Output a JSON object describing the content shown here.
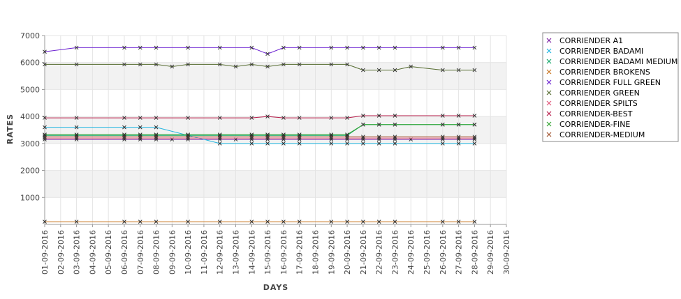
{
  "chart_data": {
    "type": "line",
    "xlabel": "DAYS",
    "ylabel": "RATES",
    "ylim": [
      0,
      7000
    ],
    "y_ticks": [
      1000,
      2000,
      3000,
      4000,
      5000,
      6000,
      7000
    ],
    "grid": true,
    "legend_position": "right",
    "categories": [
      "01-09-2016",
      "02-09-2016",
      "03-09-2016",
      "04-09-2016",
      "05-09-2016",
      "06-09-2016",
      "07-09-2016",
      "08-09-2016",
      "09-09-2016",
      "10-09-2016",
      "11-09-2016",
      "12-09-2016",
      "13-09-2016",
      "14-09-2016",
      "15-09-2016",
      "16-09-2016",
      "17-09-2016",
      "18-09-2016",
      "19-09-2016",
      "20-09-2016",
      "21-09-2016",
      "22-09-2016",
      "23-09-2016",
      "24-09-2016",
      "25-09-2016",
      "26-09-2016",
      "27-09-2016",
      "28-09-2016",
      "29-09-2016",
      "30-09-2016"
    ],
    "series": [
      {
        "name": "CORRIENDER A1",
        "color": "#7b1fa2",
        "points": [
          [
            "01-09-2016",
            3150
          ],
          [
            "03-09-2016",
            3150
          ],
          [
            "06-09-2016",
            3150
          ],
          [
            "07-09-2016",
            3150
          ],
          [
            "08-09-2016",
            3150
          ],
          [
            "09-09-2016",
            3150
          ],
          [
            "10-09-2016",
            3150
          ],
          [
            "12-09-2016",
            3150
          ],
          [
            "13-09-2016",
            3150
          ],
          [
            "14-09-2016",
            3150
          ],
          [
            "15-09-2016",
            3150
          ],
          [
            "16-09-2016",
            3150
          ],
          [
            "17-09-2016",
            3150
          ],
          [
            "19-09-2016",
            3150
          ],
          [
            "20-09-2016",
            3150
          ],
          [
            "21-09-2016",
            3150
          ],
          [
            "22-09-2016",
            3150
          ],
          [
            "23-09-2016",
            3150
          ],
          [
            "24-09-2016",
            3150
          ],
          [
            "26-09-2016",
            3150
          ],
          [
            "27-09-2016",
            3150
          ],
          [
            "28-09-2016",
            3150
          ]
        ]
      },
      {
        "name": "CORRIENDER BADAMI",
        "color": "#1fb4e0",
        "points": [
          [
            "01-09-2016",
            3600
          ],
          [
            "03-09-2016",
            3600
          ],
          [
            "06-09-2016",
            3600
          ],
          [
            "07-09-2016",
            3600
          ],
          [
            "08-09-2016",
            3600
          ],
          [
            "10-09-2016",
            3300
          ],
          [
            "12-09-2016",
            3000
          ],
          [
            "14-09-2016",
            3000
          ],
          [
            "15-09-2016",
            3000
          ],
          [
            "16-09-2016",
            3000
          ],
          [
            "17-09-2016",
            3000
          ],
          [
            "19-09-2016",
            3000
          ],
          [
            "20-09-2016",
            3000
          ],
          [
            "21-09-2016",
            3000
          ],
          [
            "22-09-2016",
            3000
          ],
          [
            "23-09-2016",
            3000
          ],
          [
            "26-09-2016",
            3000
          ],
          [
            "27-09-2016",
            3000
          ],
          [
            "28-09-2016",
            3000
          ]
        ]
      },
      {
        "name": "CORRIENDER BADAMI MEDIUM",
        "color": "#13a86a",
        "points": [
          [
            "01-09-2016",
            3300
          ],
          [
            "03-09-2016",
            3300
          ],
          [
            "06-09-2016",
            3300
          ],
          [
            "07-09-2016",
            3300
          ],
          [
            "08-09-2016",
            3300
          ],
          [
            "10-09-2016",
            3300
          ],
          [
            "12-09-2016",
            3300
          ],
          [
            "14-09-2016",
            3300
          ],
          [
            "15-09-2016",
            3300
          ],
          [
            "16-09-2016",
            3300
          ],
          [
            "17-09-2016",
            3300
          ],
          [
            "19-09-2016",
            3300
          ],
          [
            "20-09-2016",
            3300
          ],
          [
            "21-09-2016",
            3700
          ],
          [
            "22-09-2016",
            3700
          ],
          [
            "23-09-2016",
            3700
          ],
          [
            "26-09-2016",
            3700
          ],
          [
            "27-09-2016",
            3700
          ],
          [
            "28-09-2016",
            3700
          ]
        ]
      },
      {
        "name": "CORRIENDER BROKENS",
        "color": "#c8741e",
        "points": [
          [
            "01-09-2016",
            100
          ],
          [
            "03-09-2016",
            100
          ],
          [
            "06-09-2016",
            100
          ],
          [
            "07-09-2016",
            100
          ],
          [
            "08-09-2016",
            100
          ],
          [
            "10-09-2016",
            100
          ],
          [
            "12-09-2016",
            100
          ],
          [
            "14-09-2016",
            100
          ],
          [
            "15-09-2016",
            100
          ],
          [
            "16-09-2016",
            100
          ],
          [
            "17-09-2016",
            100
          ],
          [
            "19-09-2016",
            100
          ],
          [
            "20-09-2016",
            100
          ],
          [
            "21-09-2016",
            100
          ],
          [
            "22-09-2016",
            100
          ],
          [
            "23-09-2016",
            100
          ],
          [
            "26-09-2016",
            100
          ],
          [
            "27-09-2016",
            100
          ],
          [
            "28-09-2016",
            100
          ]
        ]
      },
      {
        "name": "CORRIENDER FULL GREEN",
        "color": "#6a1fd0",
        "points": [
          [
            "01-09-2016",
            6400
          ],
          [
            "03-09-2016",
            6550
          ],
          [
            "06-09-2016",
            6550
          ],
          [
            "07-09-2016",
            6550
          ],
          [
            "08-09-2016",
            6550
          ],
          [
            "10-09-2016",
            6550
          ],
          [
            "12-09-2016",
            6550
          ],
          [
            "14-09-2016",
            6550
          ],
          [
            "15-09-2016",
            6320
          ],
          [
            "16-09-2016",
            6550
          ],
          [
            "17-09-2016",
            6550
          ],
          [
            "19-09-2016",
            6550
          ],
          [
            "20-09-2016",
            6550
          ],
          [
            "21-09-2016",
            6550
          ],
          [
            "22-09-2016",
            6550
          ],
          [
            "23-09-2016",
            6550
          ],
          [
            "26-09-2016",
            6550
          ],
          [
            "27-09-2016",
            6550
          ],
          [
            "28-09-2016",
            6550
          ]
        ]
      },
      {
        "name": "CORRIENDER GREEN",
        "color": "#556b2f",
        "points": [
          [
            "01-09-2016",
            5930
          ],
          [
            "03-09-2016",
            5930
          ],
          [
            "06-09-2016",
            5930
          ],
          [
            "07-09-2016",
            5930
          ],
          [
            "08-09-2016",
            5930
          ],
          [
            "09-09-2016",
            5850
          ],
          [
            "10-09-2016",
            5930
          ],
          [
            "12-09-2016",
            5930
          ],
          [
            "13-09-2016",
            5850
          ],
          [
            "14-09-2016",
            5930
          ],
          [
            "15-09-2016",
            5850
          ],
          [
            "16-09-2016",
            5930
          ],
          [
            "17-09-2016",
            5930
          ],
          [
            "19-09-2016",
            5930
          ],
          [
            "20-09-2016",
            5930
          ],
          [
            "21-09-2016",
            5720
          ],
          [
            "22-09-2016",
            5720
          ],
          [
            "23-09-2016",
            5720
          ],
          [
            "24-09-2016",
            5850
          ],
          [
            "26-09-2016",
            5720
          ],
          [
            "27-09-2016",
            5720
          ],
          [
            "28-09-2016",
            5720
          ]
        ]
      },
      {
        "name": "CORRIENDER SPILTS",
        "color": "#e0567a",
        "points": [
          [
            "01-09-2016",
            3200
          ],
          [
            "03-09-2016",
            3200
          ],
          [
            "06-09-2016",
            3200
          ],
          [
            "07-09-2016",
            3200
          ],
          [
            "08-09-2016",
            3200
          ],
          [
            "10-09-2016",
            3200
          ],
          [
            "12-09-2016",
            3200
          ],
          [
            "14-09-2016",
            3200
          ],
          [
            "15-09-2016",
            3200
          ],
          [
            "16-09-2016",
            3200
          ],
          [
            "17-09-2016",
            3200
          ],
          [
            "19-09-2016",
            3200
          ],
          [
            "20-09-2016",
            3200
          ],
          [
            "21-09-2016",
            3200
          ],
          [
            "22-09-2016",
            3200
          ],
          [
            "23-09-2016",
            3200
          ],
          [
            "26-09-2016",
            3200
          ],
          [
            "27-09-2016",
            3200
          ],
          [
            "28-09-2016",
            3200
          ]
        ]
      },
      {
        "name": "CORRIENDER-BEST",
        "color": "#b71c4a",
        "points": [
          [
            "01-09-2016",
            3950
          ],
          [
            "03-09-2016",
            3950
          ],
          [
            "06-09-2016",
            3950
          ],
          [
            "07-09-2016",
            3950
          ],
          [
            "08-09-2016",
            3950
          ],
          [
            "10-09-2016",
            3950
          ],
          [
            "12-09-2016",
            3950
          ],
          [
            "14-09-2016",
            3950
          ],
          [
            "15-09-2016",
            4000
          ],
          [
            "16-09-2016",
            3950
          ],
          [
            "17-09-2016",
            3950
          ],
          [
            "19-09-2016",
            3950
          ],
          [
            "20-09-2016",
            3950
          ],
          [
            "21-09-2016",
            4030
          ],
          [
            "22-09-2016",
            4030
          ],
          [
            "23-09-2016",
            4030
          ],
          [
            "26-09-2016",
            4030
          ],
          [
            "27-09-2016",
            4030
          ],
          [
            "28-09-2016",
            4030
          ]
        ]
      },
      {
        "name": "CORRIENDER-FINE",
        "color": "#33a532",
        "points": [
          [
            "01-09-2016",
            3330
          ],
          [
            "03-09-2016",
            3330
          ],
          [
            "06-09-2016",
            3330
          ],
          [
            "07-09-2016",
            3330
          ],
          [
            "08-09-2016",
            3330
          ],
          [
            "10-09-2016",
            3330
          ],
          [
            "12-09-2016",
            3330
          ],
          [
            "14-09-2016",
            3330
          ],
          [
            "15-09-2016",
            3330
          ],
          [
            "16-09-2016",
            3330
          ],
          [
            "17-09-2016",
            3330
          ],
          [
            "19-09-2016",
            3330
          ],
          [
            "20-09-2016",
            3330
          ],
          [
            "21-09-2016",
            3700
          ],
          [
            "22-09-2016",
            3700
          ],
          [
            "23-09-2016",
            3700
          ],
          [
            "26-09-2016",
            3700
          ],
          [
            "27-09-2016",
            3700
          ],
          [
            "28-09-2016",
            3700
          ]
        ]
      },
      {
        "name": "CORRIENDER-MEDIUM",
        "color": "#a0522d",
        "points": [
          [
            "01-09-2016",
            3250
          ],
          [
            "03-09-2016",
            3250
          ],
          [
            "06-09-2016",
            3250
          ],
          [
            "07-09-2016",
            3250
          ],
          [
            "08-09-2016",
            3250
          ],
          [
            "10-09-2016",
            3250
          ],
          [
            "12-09-2016",
            3250
          ],
          [
            "14-09-2016",
            3250
          ],
          [
            "15-09-2016",
            3250
          ],
          [
            "16-09-2016",
            3250
          ],
          [
            "17-09-2016",
            3250
          ],
          [
            "19-09-2016",
            3250
          ],
          [
            "20-09-2016",
            3250
          ],
          [
            "21-09-2016",
            3250
          ],
          [
            "22-09-2016",
            3250
          ],
          [
            "23-09-2016",
            3250
          ],
          [
            "26-09-2016",
            3250
          ],
          [
            "27-09-2016",
            3250
          ],
          [
            "28-09-2016",
            3250
          ]
        ]
      }
    ]
  }
}
